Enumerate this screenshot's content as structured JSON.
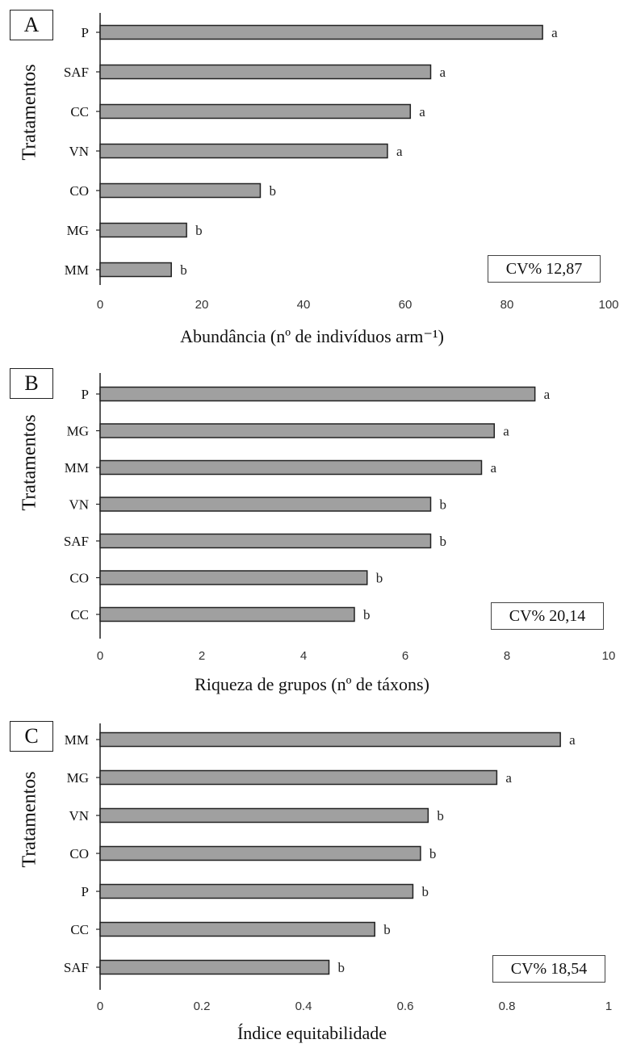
{
  "chart_data": [
    {
      "type": "bar",
      "orientation": "horizontal",
      "panel": "A",
      "ylabel": "Tratamentos",
      "xlabel": "Abundância (nº de indivíduos arm⁻¹)",
      "xlim": [
        0,
        100
      ],
      "xticks": [
        "0",
        "20",
        "40",
        "60",
        "80",
        "100"
      ],
      "categories": [
        "P",
        "SAF",
        "CC",
        "VN",
        "CO",
        "MG",
        "MM"
      ],
      "values": [
        87,
        65,
        61,
        56.5,
        31.5,
        17,
        14
      ],
      "letters": [
        "a",
        "a",
        "a",
        "a",
        "b",
        "b",
        "b"
      ],
      "cv": "CV% 12,87"
    },
    {
      "type": "bar",
      "orientation": "horizontal",
      "panel": "B",
      "ylabel": "Tratamentos",
      "xlabel": "Riqueza de grupos (nº de táxons)",
      "xlim": [
        0,
        10
      ],
      "xticks": [
        "0",
        "2",
        "4",
        "6",
        "8",
        "10"
      ],
      "categories": [
        "P",
        "MG",
        "MM",
        "VN",
        "SAF",
        "CO",
        "CC"
      ],
      "values": [
        8.55,
        7.75,
        7.5,
        6.5,
        6.5,
        5.25,
        5.0
      ],
      "letters": [
        "a",
        "a",
        "a",
        "b",
        "b",
        "b",
        "b"
      ],
      "cv": "CV% 20,14"
    },
    {
      "type": "bar",
      "orientation": "horizontal",
      "panel": "C",
      "ylabel": "Tratamentos",
      "xlabel": "Índice equitabilidade",
      "xlim": [
        0,
        1
      ],
      "xticks": [
        "0",
        "0.2",
        "0.4",
        "0.6",
        "0.8",
        "1"
      ],
      "categories": [
        "MM",
        "MG",
        "VN",
        "CO",
        "P",
        "CC",
        "SAF"
      ],
      "values": [
        0.905,
        0.78,
        0.645,
        0.63,
        0.615,
        0.54,
        0.45
      ],
      "letters": [
        "a",
        "a",
        "b",
        "b",
        "b",
        "b",
        "b"
      ],
      "cv": "CV% 18,54"
    }
  ],
  "colors": {
    "bar_fill": "#a0a0a0",
    "bar_stroke": "#222222",
    "axis": "#222222"
  }
}
